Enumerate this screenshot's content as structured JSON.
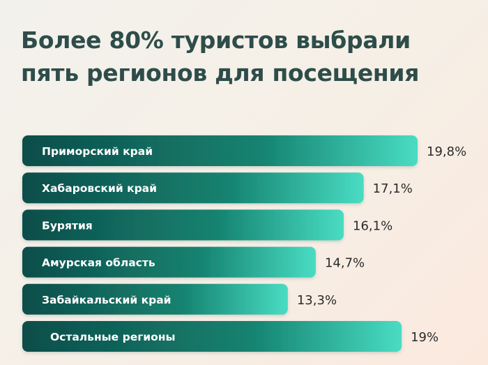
{
  "title_lines": [
    "Более 80% туристов выбрали",
    "пять регионов для посещения"
  ],
  "colors": {
    "title": "#2e4d4a",
    "bar_start": "#0f4d4a",
    "bar_mid": "#14826f",
    "bar_end": "#49dcc3",
    "bar_text": "#ffffff",
    "value_text": "#2b2b2b"
  },
  "chart_data": {
    "type": "bar",
    "orientation": "horizontal",
    "title": "Более 80% туристов выбрали пять регионов для посещения",
    "categories": [
      "Приморский край",
      "Хабаровский край",
      "Бурятия",
      "Амурская область",
      "Забайкальский край",
      "Остальные регионы"
    ],
    "values": [
      19.8,
      17.1,
      16.1,
      14.7,
      13.3,
      19
    ],
    "value_labels": [
      "19,8%",
      "17,1%",
      "16,1%",
      "14,7%",
      "13,3%",
      "19%"
    ],
    "unit": "%",
    "xlim": [
      0,
      19.8
    ],
    "grid": false,
    "legend": "none"
  }
}
